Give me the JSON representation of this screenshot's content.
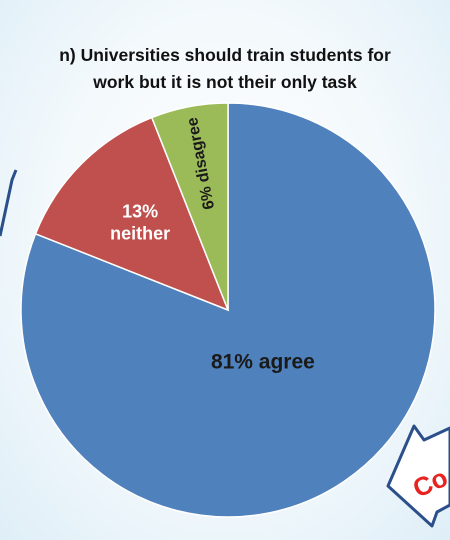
{
  "chart_data": {
    "type": "pie",
    "title_lines": [
      "n) Universities should train students for",
      "work but it is not their only task"
    ],
    "slices": [
      {
        "label_lines": [
          "81% agree"
        ],
        "value": 81,
        "color": "#4f81bd"
      },
      {
        "label_lines": [
          "13%",
          "neither"
        ],
        "value": 13,
        "color": "#c0504d"
      },
      {
        "label_lines": [
          "6% disagree"
        ],
        "value": 6,
        "color": "#9bbb59"
      }
    ],
    "start_angle_deg": 0,
    "direction": "clockwise",
    "legend": "none"
  },
  "decorations": {
    "callout_text": "Co",
    "callout_color": "#e8231f",
    "arrow_stroke": "#2b4f8a"
  }
}
